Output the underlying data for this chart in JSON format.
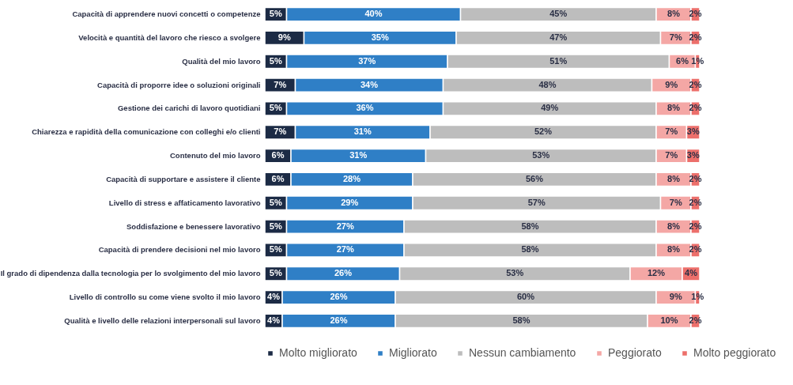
{
  "chart_data": {
    "type": "bar",
    "orientation": "horizontal",
    "stacked": true,
    "legend": "bottom",
    "categories": [
      "Capacità di apprendere nuovi concetti o competenze",
      "Velocità e quantità del lavoro che riesco a svolgere",
      "Qualità del mio lavoro",
      "Capacità di proporre idee o soluzioni originali",
      "Gestione dei carichi di lavoro quotidiani",
      "Chiarezza e rapidità della comunicazione con colleghi e/o clienti",
      "Contenuto del mio lavoro",
      "Capacità di supportare e assistere il cliente",
      "Livello di stress e affaticamento lavorativo",
      "Soddisfazione e benessere lavorativo",
      "Capacità di prendere decisioni nel mio lavoro",
      "Il grado di dipendenza dalla tecnologia per lo svolgimento del mio lavoro",
      "Livello di controllo su come viene svolto il mio lavoro",
      "Qualità e livello delle relazioni interpersonali sul lavoro"
    ],
    "series": [
      {
        "name": "Molto migliorato",
        "color": "#1c2b45",
        "values": [
          5,
          9,
          5,
          7,
          5,
          7,
          6,
          6,
          5,
          5,
          5,
          5,
          4,
          4
        ],
        "value_labels": [
          "5%",
          "9%",
          "5%",
          "7%",
          "5%",
          "7%",
          "6%",
          "6%",
          "5%",
          "5%",
          "5%",
          "5%",
          "4%",
          "4%"
        ]
      },
      {
        "name": "Migliorato",
        "color": "#2f7fc6",
        "values": [
          40,
          35,
          37,
          34,
          36,
          31,
          31,
          28,
          29,
          27,
          27,
          26,
          26,
          26
        ],
        "value_labels": [
          "40%",
          "35%",
          "37%",
          "34%",
          "36%",
          "31%",
          "31%",
          "28%",
          "29%",
          "27%",
          "27%",
          "26%",
          "26%",
          "26%"
        ]
      },
      {
        "name": "Nessun cambiamento",
        "color": "#bdbdbd",
        "values": [
          45,
          47,
          51,
          48,
          49,
          52,
          53,
          56,
          57,
          58,
          58,
          53,
          60,
          58
        ],
        "value_labels": [
          "45%",
          "47%",
          "51%",
          "48%",
          "49%",
          "52%",
          "53%",
          "56%",
          "57%",
          "58%",
          "58%",
          "53%",
          "60%",
          "58%"
        ]
      },
      {
        "name": "Peggiorato",
        "color": "#f4a7a5",
        "values": [
          8,
          7,
          6,
          9,
          8,
          7,
          7,
          8,
          7,
          8,
          8,
          12,
          9,
          10
        ],
        "value_labels": [
          "8%",
          "7%",
          "6%",
          "9%",
          "8%",
          "7%",
          "7%",
          "8%",
          "7%",
          "8%",
          "8%",
          "12%",
          "9%",
          "10%"
        ]
      },
      {
        "name": "Molto peggiorato",
        "color": "#ec6f6b",
        "values": [
          2,
          2,
          1,
          2,
          2,
          3,
          3,
          2,
          2,
          2,
          2,
          4,
          1,
          2
        ],
        "value_labels": [
          "2%",
          "2%",
          "1%",
          "2%",
          "2%",
          "3%",
          "3%",
          "2%",
          "2%",
          "2%",
          "2%",
          "4%",
          "1%",
          "2%"
        ]
      }
    ]
  }
}
